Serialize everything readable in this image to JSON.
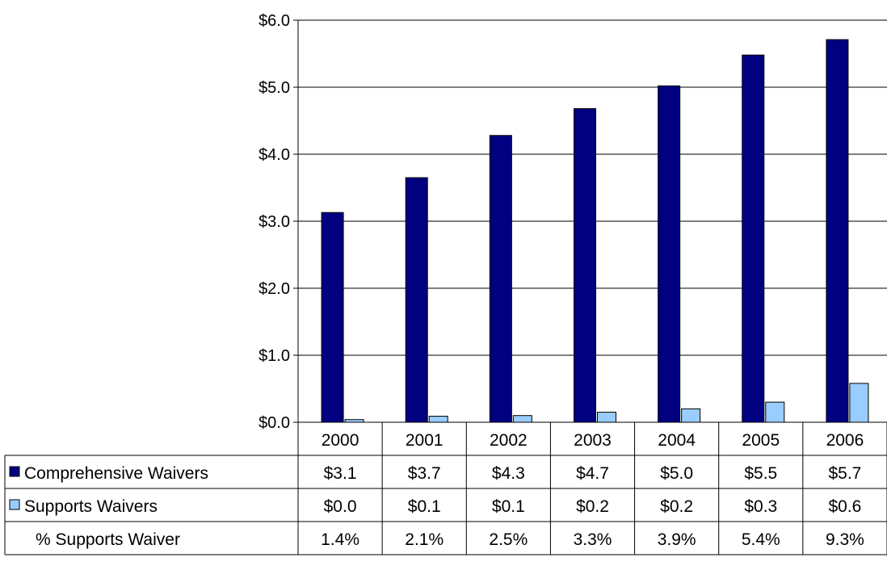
{
  "chart_data": {
    "type": "bar",
    "categories": [
      "2000",
      "2001",
      "2002",
      "2003",
      "2004",
      "2005",
      "2006"
    ],
    "series": [
      {
        "name": "Comprehensive Waivers",
        "values": [
          3.13,
          3.65,
          4.28,
          4.68,
          5.02,
          5.48,
          5.71
        ],
        "labels": [
          "$3.1",
          "$3.7",
          "$4.3",
          "$4.7",
          "$5.0",
          "$5.5",
          "$5.7"
        ],
        "color": "#000080"
      },
      {
        "name": "Supports Waivers",
        "values": [
          0.04,
          0.09,
          0.1,
          0.15,
          0.2,
          0.3,
          0.58
        ],
        "labels": [
          "$0.0",
          "$0.1",
          "$0.1",
          "$0.2",
          "$0.2",
          "$0.3",
          "$0.6"
        ],
        "color": "#99ccff"
      }
    ],
    "extra_row": {
      "name": "% Supports Waiver",
      "values": [
        "1.4%",
        "2.1%",
        "2.5%",
        "3.3%",
        "3.9%",
        "5.4%",
        "9.3%"
      ]
    },
    "y_ticks": [
      "$0.0",
      "$1.0",
      "$2.0",
      "$3.0",
      "$4.0",
      "$5.0",
      "$6.0"
    ],
    "ylim": [
      0,
      6
    ],
    "grid": true,
    "legend": "data-table"
  }
}
